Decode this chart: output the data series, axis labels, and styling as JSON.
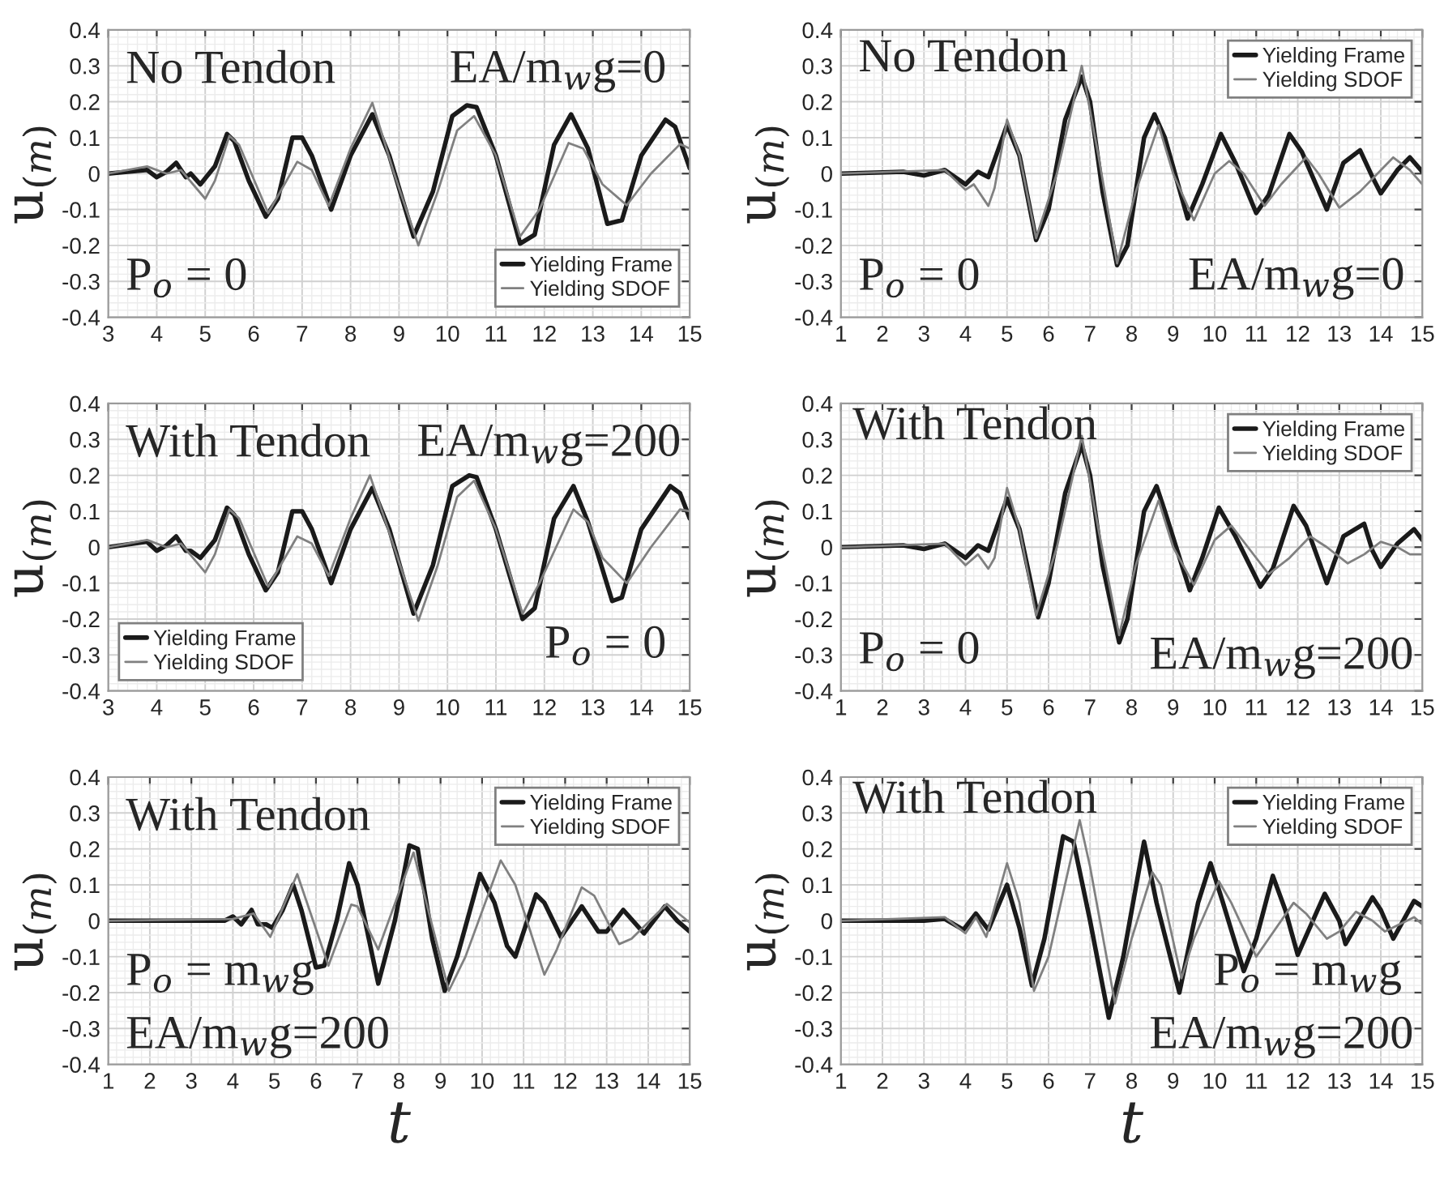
{
  "chart_data": [
    {
      "type": "line",
      "ylabel": "u$_{(m)}$",
      "xlim": [
        3,
        15
      ],
      "ylim": [
        -0.4,
        0.4
      ],
      "xticks": [
        3,
        4,
        5,
        6,
        7,
        8,
        9,
        10,
        11,
        12,
        13,
        14,
        15
      ],
      "yticks": [
        -0.4,
        -0.3,
        -0.2,
        -0.1,
        0,
        0.1,
        0.2,
        0.3,
        0.4
      ],
      "grid": true,
      "legend": "bottom right",
      "marker": "none",
      "line_style": "solid",
      "annotations": [
        "No Tendon",
        "EA/m$_{w}$g=0",
        "P$_{o}$ = 0"
      ],
      "series": [
        {
          "name": "Yielding Frame",
          "color": "#1a1a1a",
          "x": [
            3,
            3.8,
            4,
            4.2,
            4.4,
            4.6,
            4.7,
            4.9,
            5.2,
            5.45,
            5.6,
            5.9,
            6.25,
            6.5,
            6.8,
            7.0,
            7.2,
            7.6,
            8.0,
            8.45,
            8.8,
            9.3,
            9.7,
            10.1,
            10.4,
            10.6,
            11.0,
            11.5,
            11.8,
            12.2,
            12.55,
            12.9,
            13.3,
            13.6,
            14.0,
            14.5,
            14.7,
            15
          ],
          "values": [
            0,
            0.01,
            -0.01,
            0.005,
            0.03,
            -0.01,
            0,
            -0.03,
            0.02,
            0.11,
            0.09,
            -0.02,
            -0.12,
            -0.07,
            0.1,
            0.1,
            0.05,
            -0.1,
            0.05,
            0.165,
            0.05,
            -0.175,
            -0.05,
            0.16,
            0.19,
            0.185,
            0.05,
            -0.195,
            -0.17,
            0.08,
            0.165,
            0.07,
            -0.14,
            -0.13,
            0.05,
            0.15,
            0.13,
            0.015
          ]
        },
        {
          "name": "Yielding SDOF",
          "color": "#808080",
          "x": [
            3,
            3.8,
            4.2,
            4.5,
            5.0,
            5.2,
            5.5,
            5.7,
            6.3,
            6.9,
            7.2,
            7.55,
            8.0,
            8.45,
            8.9,
            9.4,
            9.8,
            10.2,
            10.55,
            11.0,
            11.5,
            11.9,
            12.5,
            12.8,
            13.2,
            13.7,
            14.2,
            14.8,
            15
          ],
          "values": [
            0,
            0.02,
            0,
            0.01,
            -0.07,
            -0.02,
            0.105,
            0.08,
            -0.11,
            0.033,
            0.01,
            -0.09,
            0.07,
            0.197,
            0,
            -0.2,
            -0.05,
            0.12,
            0.16,
            0.05,
            -0.175,
            -0.1,
            0.085,
            0.07,
            -0.03,
            -0.088,
            0,
            0.082,
            0.07
          ]
        }
      ]
    },
    {
      "type": "line",
      "ylabel": "u$_{(m)}$",
      "xlim": [
        1,
        15
      ],
      "ylim": [
        -0.4,
        0.4
      ],
      "xticks": [
        1,
        2,
        3,
        4,
        5,
        6,
        7,
        8,
        9,
        10,
        11,
        12,
        13,
        14,
        15
      ],
      "yticks": [
        -0.4,
        -0.3,
        -0.2,
        -0.1,
        0,
        0.1,
        0.2,
        0.3,
        0.4
      ],
      "grid": true,
      "legend": "top right",
      "marker": "none",
      "line_style": "solid",
      "annotations": [
        "No Tendon",
        "P$_{o}$ = 0",
        "EA/m$_{w}$g=0"
      ],
      "series": [
        {
          "name": "Yielding Frame",
          "color": "#1a1a1a",
          "x": [
            1,
            2.5,
            3,
            3.5,
            4,
            4.3,
            4.55,
            5.0,
            5.3,
            5.7,
            6.0,
            6.4,
            6.8,
            7.0,
            7.3,
            7.65,
            7.9,
            8.3,
            8.55,
            8.8,
            9.35,
            9.7,
            10.15,
            10.5,
            11.0,
            11.3,
            11.8,
            12.1,
            12.7,
            13.1,
            13.5,
            13.8,
            14.0,
            14.4,
            14.7,
            15
          ],
          "values": [
            0,
            0.005,
            -0.005,
            0.01,
            -0.03,
            0.005,
            -0.01,
            0.135,
            0.05,
            -0.185,
            -0.1,
            0.15,
            0.27,
            0.2,
            -0.05,
            -0.255,
            -0.2,
            0.1,
            0.165,
            0.1,
            -0.125,
            -0.03,
            0.11,
            0.03,
            -0.11,
            -0.06,
            0.11,
            0.06,
            -0.1,
            0.03,
            0.065,
            -0.01,
            -0.055,
            0.01,
            0.045,
            0.005
          ]
        },
        {
          "name": "Yielding SDOF",
          "color": "#808080",
          "x": [
            1,
            3.5,
            4.0,
            4.2,
            4.55,
            4.7,
            5.0,
            5.3,
            5.7,
            6.2,
            6.8,
            7.2,
            7.65,
            8.1,
            8.65,
            9.0,
            9.5,
            10.0,
            10.35,
            10.7,
            11.2,
            11.6,
            12.2,
            12.5,
            13.0,
            13.5,
            14.3,
            14.7,
            15
          ],
          "values": [
            0,
            0.01,
            -0.045,
            -0.03,
            -0.09,
            -0.04,
            0.15,
            0.05,
            -0.18,
            0,
            0.3,
            0.05,
            -0.25,
            -0.05,
            0.135,
            0,
            -0.13,
            0,
            0.035,
            0,
            -0.09,
            -0.03,
            0.045,
            0,
            -0.095,
            -0.05,
            0.045,
            0.01,
            -0.03
          ]
        }
      ]
    },
    {
      "type": "line",
      "ylabel": "u$_{(m)}$",
      "xlim": [
        3,
        15
      ],
      "ylim": [
        -0.4,
        0.4
      ],
      "xticks": [
        3,
        4,
        5,
        6,
        7,
        8,
        9,
        10,
        11,
        12,
        13,
        14,
        15
      ],
      "yticks": [
        -0.4,
        -0.3,
        -0.2,
        -0.1,
        0,
        0.1,
        0.2,
        0.3,
        0.4
      ],
      "grid": true,
      "legend": "bottom left",
      "marker": "none",
      "line_style": "solid",
      "annotations": [
        "With Tendon",
        "EA/m$_{w}$g=200",
        "P$_{o}$ = 0"
      ],
      "series": [
        {
          "name": "Yielding Frame",
          "color": "#1a1a1a",
          "x": [
            3,
            3.8,
            4,
            4.2,
            4.4,
            4.6,
            4.7,
            4.9,
            5.2,
            5.45,
            5.6,
            5.9,
            6.25,
            6.5,
            6.8,
            7.0,
            7.2,
            7.6,
            8.0,
            8.45,
            8.8,
            9.3,
            9.7,
            10.1,
            10.45,
            10.6,
            11.0,
            11.55,
            11.8,
            12.2,
            12.6,
            12.9,
            13.4,
            13.6,
            14.0,
            14.6,
            14.8,
            15
          ],
          "values": [
            0,
            0.015,
            -0.01,
            0.005,
            0.03,
            -0.01,
            -0.01,
            -0.03,
            0.02,
            0.11,
            0.09,
            -0.02,
            -0.12,
            -0.07,
            0.1,
            0.1,
            0.05,
            -0.1,
            0.05,
            0.165,
            0.05,
            -0.185,
            -0.05,
            0.17,
            0.2,
            0.195,
            0.05,
            -0.2,
            -0.17,
            0.08,
            0.17,
            0.07,
            -0.15,
            -0.14,
            0.05,
            0.17,
            0.15,
            0.08
          ]
        },
        {
          "name": "Yielding SDOF",
          "color": "#808080",
          "x": [
            3,
            3.8,
            4.2,
            4.5,
            5.0,
            5.2,
            5.5,
            5.7,
            6.3,
            6.9,
            7.2,
            7.55,
            8.0,
            8.4,
            8.9,
            9.4,
            9.8,
            10.2,
            10.55,
            11.0,
            11.55,
            11.9,
            12.6,
            12.9,
            13.2,
            13.7,
            14.2,
            14.8,
            15
          ],
          "values": [
            0,
            0.02,
            0,
            0.01,
            -0.07,
            -0.02,
            0.105,
            0.08,
            -0.11,
            0.03,
            0.01,
            -0.08,
            0.08,
            0.2,
            0,
            -0.205,
            -0.05,
            0.14,
            0.185,
            0.05,
            -0.185,
            -0.1,
            0.105,
            0.07,
            -0.03,
            -0.1,
            0,
            0.105,
            0.1
          ]
        }
      ]
    },
    {
      "type": "line",
      "ylabel": "u$_{(m)}$",
      "xlim": [
        1,
        15
      ],
      "ylim": [
        -0.4,
        0.4
      ],
      "xticks": [
        1,
        2,
        3,
        4,
        5,
        6,
        7,
        8,
        9,
        10,
        11,
        12,
        13,
        14,
        15
      ],
      "yticks": [
        -0.4,
        -0.3,
        -0.2,
        -0.1,
        0,
        0.1,
        0.2,
        0.3,
        0.4
      ],
      "grid": true,
      "legend": "top right",
      "marker": "none",
      "line_style": "solid",
      "annotations": [
        "With Tendon",
        "P$_{o}$ = 0",
        "EA/m$_{w}$g=200"
      ],
      "series": [
        {
          "name": "Yielding Frame",
          "color": "#1a1a1a",
          "x": [
            1,
            2.5,
            3,
            3.5,
            4,
            4.3,
            4.55,
            5.0,
            5.3,
            5.75,
            6.0,
            6.4,
            6.8,
            7.0,
            7.3,
            7.7,
            7.9,
            8.3,
            8.6,
            8.8,
            9.4,
            9.7,
            10.1,
            10.5,
            11.1,
            11.4,
            11.9,
            12.2,
            12.7,
            13.1,
            13.6,
            13.8,
            14.0,
            14.4,
            14.8,
            15
          ],
          "values": [
            0,
            0.005,
            -0.005,
            0.01,
            -0.03,
            0.005,
            -0.01,
            0.135,
            0.05,
            -0.195,
            -0.1,
            0.15,
            0.285,
            0.2,
            -0.05,
            -0.265,
            -0.2,
            0.1,
            0.17,
            0.1,
            -0.12,
            -0.03,
            0.11,
            0.03,
            -0.11,
            -0.06,
            0.115,
            0.06,
            -0.1,
            0.03,
            0.065,
            -0.01,
            -0.055,
            0.01,
            0.05,
            0.02
          ]
        },
        {
          "name": "Yielding SDOF",
          "color": "#808080",
          "x": [
            1,
            3.5,
            4.0,
            4.3,
            4.55,
            4.7,
            5.0,
            5.3,
            5.7,
            6.2,
            6.8,
            7.2,
            7.7,
            8.1,
            8.65,
            9.0,
            9.5,
            10.0,
            10.4,
            10.8,
            11.3,
            11.8,
            12.3,
            12.7,
            13.2,
            13.6,
            14.0,
            14.4,
            14.7,
            15
          ],
          "values": [
            0,
            0.01,
            -0.05,
            -0.02,
            -0.06,
            -0.03,
            0.165,
            0.05,
            -0.19,
            0,
            0.31,
            0.05,
            -0.245,
            -0.05,
            0.13,
            0,
            -0.105,
            0.02,
            0.06,
            0,
            -0.075,
            -0.03,
            0.03,
            0,
            -0.045,
            -0.02,
            0.015,
            0,
            -0.02,
            -0.02
          ]
        }
      ]
    },
    {
      "type": "line",
      "xlabel": "t",
      "ylabel": "u$_{(m)}$",
      "xlim": [
        1,
        15
      ],
      "ylim": [
        -0.4,
        0.4
      ],
      "xticks": [
        1,
        2,
        3,
        4,
        5,
        6,
        7,
        8,
        9,
        10,
        11,
        12,
        13,
        14,
        15
      ],
      "yticks": [
        -0.4,
        -0.3,
        -0.2,
        -0.1,
        0,
        0.1,
        0.2,
        0.3,
        0.4
      ],
      "grid": true,
      "legend": "top right",
      "marker": "none",
      "line_style": "solid",
      "annotations": [
        "With Tendon",
        "P$_{o}$ = m$_{w}$g",
        "EA/m$_{w}$g=200"
      ],
      "series": [
        {
          "name": "Yielding Frame",
          "color": "#1a1a1a",
          "x": [
            1,
            3.8,
            4.0,
            4.2,
            4.45,
            4.6,
            4.8,
            4.95,
            5.2,
            5.45,
            5.65,
            6.0,
            6.2,
            6.5,
            6.8,
            7.0,
            7.5,
            7.9,
            8.25,
            8.45,
            8.8,
            9.1,
            9.4,
            9.95,
            10.3,
            10.6,
            10.8,
            11.3,
            11.5,
            11.9,
            12.4,
            12.8,
            13.0,
            13.4,
            13.9,
            14.4,
            14.7,
            15
          ],
          "values": [
            0,
            0,
            0.012,
            -0.01,
            0.03,
            -0.01,
            -0.01,
            -0.02,
            0.03,
            0.1,
            0.03,
            -0.13,
            -0.125,
            0,
            0.16,
            0.1,
            -0.175,
            0,
            0.21,
            0.2,
            -0.05,
            -0.195,
            -0.1,
            0.13,
            0.05,
            -0.07,
            -0.1,
            0.073,
            0.05,
            -0.045,
            0.04,
            -0.03,
            -0.03,
            0.03,
            -0.035,
            0.04,
            0,
            -0.03
          ]
        },
        {
          "name": "Yielding SDOF",
          "color": "#808080",
          "x": [
            1,
            4.0,
            4.5,
            4.9,
            5.55,
            6.3,
            6.85,
            7.0,
            7.5,
            8.35,
            9.2,
            9.6,
            10.45,
            10.8,
            11.5,
            11.8,
            12.4,
            12.7,
            13.3,
            13.6,
            14.45,
            15
          ],
          "values": [
            0,
            0.005,
            0.02,
            -0.045,
            0.13,
            -0.125,
            0.045,
            0.04,
            -0.08,
            0.19,
            -0.195,
            -0.1,
            0.168,
            0.1,
            -0.15,
            -0.08,
            0.093,
            0.07,
            -0.065,
            -0.05,
            0.047,
            -0.005
          ]
        }
      ]
    },
    {
      "type": "line",
      "xlabel": "t",
      "ylabel": "u$_{(m)}$",
      "xlim": [
        1,
        15
      ],
      "ylim": [
        -0.4,
        0.4
      ],
      "xticks": [
        1,
        2,
        3,
        4,
        5,
        6,
        7,
        8,
        9,
        10,
        11,
        12,
        13,
        14,
        15
      ],
      "yticks": [
        -0.4,
        -0.3,
        -0.2,
        -0.1,
        0,
        0.1,
        0.2,
        0.3,
        0.4
      ],
      "grid": true,
      "legend": "top right",
      "marker": "none",
      "line_style": "solid",
      "annotations": [
        "With Tendon",
        "P$_{o}$ = m$_{w}$g",
        "EA/m$_{w}$g=200"
      ],
      "series": [
        {
          "name": "Yielding Frame",
          "color": "#1a1a1a",
          "x": [
            1,
            3,
            3.5,
            3.95,
            4.25,
            4.55,
            5.0,
            5.3,
            5.6,
            5.9,
            6.35,
            6.6,
            7.0,
            7.45,
            7.8,
            8.3,
            8.6,
            9.15,
            9.6,
            9.9,
            10.2,
            10.7,
            11.0,
            11.4,
            11.7,
            12.0,
            12.65,
            13.0,
            13.15,
            13.8,
            14.0,
            14.3,
            14.8,
            15
          ],
          "values": [
            0,
            0,
            0.005,
            -0.025,
            0.02,
            -0.025,
            0.1,
            -0.02,
            -0.18,
            -0.05,
            0.235,
            0.22,
            0,
            -0.27,
            -0.1,
            0.22,
            0.05,
            -0.2,
            0.05,
            0.16,
            0.05,
            -0.14,
            -0.05,
            0.125,
            0.03,
            -0.095,
            0.075,
            0,
            -0.065,
            0.065,
            0.03,
            -0.05,
            0.055,
            0.04
          ]
        },
        {
          "name": "Yielding SDOF",
          "color": "#808080",
          "x": [
            1,
            3.5,
            4.0,
            4.25,
            4.5,
            5.0,
            5.3,
            5.65,
            6.0,
            6.75,
            7.0,
            7.6,
            8.0,
            8.5,
            8.7,
            9.2,
            9.5,
            10.1,
            10.4,
            11.0,
            11.3,
            11.9,
            12.2,
            12.7,
            13.0,
            13.4,
            13.8,
            14.1,
            14.8,
            15
          ],
          "values": [
            0,
            0.01,
            -0.035,
            0.01,
            -0.045,
            0.16,
            0.05,
            -0.195,
            -0.1,
            0.28,
            0.15,
            -0.23,
            -0.05,
            0.135,
            0.1,
            -0.16,
            -0.05,
            0.11,
            0.05,
            -0.1,
            -0.05,
            0.05,
            0.02,
            -0.05,
            -0.03,
            0.025,
            0,
            -0.03,
            0.01,
            -0.01
          ]
        }
      ]
    }
  ]
}
